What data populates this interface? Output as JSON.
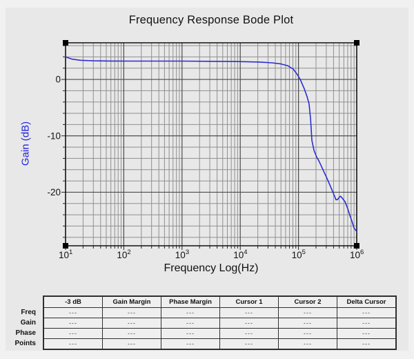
{
  "chart_data": {
    "type": "line",
    "title": "Frequency Response Bode Plot",
    "xlabel": "Frequency Log(Hz)",
    "ylabel": "Gain (dB)",
    "x_scale": "log",
    "xlim": [
      10,
      1000000
    ],
    "ylim": [
      -29.5,
      6.5
    ],
    "x_tick_labels": [
      "10^1",
      "10^2",
      "10^3",
      "10^4",
      "10^5",
      "10^6"
    ],
    "x_tick_exponents": [
      1,
      2,
      3,
      4,
      5,
      6
    ],
    "y_tick_values": [
      0,
      -10,
      -20
    ],
    "grid": "on",
    "grid_minor_db_step": 2,
    "legend_position": "none",
    "series": [
      {
        "name": "Gain",
        "color": "#2c2cd2",
        "x": [
          10,
          13,
          18,
          30,
          60,
          150,
          400,
          1000,
          3000,
          8000,
          20000,
          35000,
          50000,
          65000,
          81000,
          95000,
          107000,
          125000,
          140000,
          152000,
          161000,
          170000,
          185000,
          206000,
          223000,
          250000,
          277000,
          310000,
          345000,
          390000,
          441000,
          470000,
          500000,
          527000,
          560000,
          630000,
          700000,
          762000,
          830000,
          897000,
          1000000
        ],
        "y": [
          4.0,
          3.6,
          3.4,
          3.3,
          3.27,
          3.25,
          3.25,
          3.25,
          3.22,
          3.18,
          3.1,
          2.95,
          2.75,
          2.45,
          1.85,
          0.9,
          0.0,
          -1.6,
          -3.0,
          -4.3,
          -7.0,
          -10.8,
          -12.6,
          -13.8,
          -14.4,
          -15.5,
          -16.5,
          -17.6,
          -18.7,
          -20.0,
          -21.35,
          -21.3,
          -20.9,
          -20.7,
          -21.0,
          -21.7,
          -22.9,
          -24.1,
          -25.2,
          -26.3,
          -27.0
        ]
      }
    ]
  },
  "measurements_table": {
    "columns": [
      "-3 dB",
      "Gain Margin",
      "Phase Margin",
      "Cursor 1",
      "Cursor 2",
      "Delta Cursor"
    ],
    "row_labels": [
      "Freq",
      "Gain",
      "Phase",
      "Points"
    ],
    "values": [
      [
        "---",
        "---",
        "---",
        "---",
        "---",
        "---"
      ],
      [
        "---",
        "---",
        "---",
        "---",
        "---",
        "---"
      ],
      [
        "---",
        "---",
        "---",
        "---",
        "---",
        "---"
      ],
      [
        "---",
        "---",
        "---",
        "---",
        "---",
        "---"
      ]
    ]
  },
  "colors": {
    "curve": "#2c2cd2",
    "axis_label": "#2222dd",
    "grid_major": "#4a4a4a",
    "grid_minor": "#8f8f8f",
    "frame": "#000000",
    "panel_background": "#e8e8e8"
  }
}
